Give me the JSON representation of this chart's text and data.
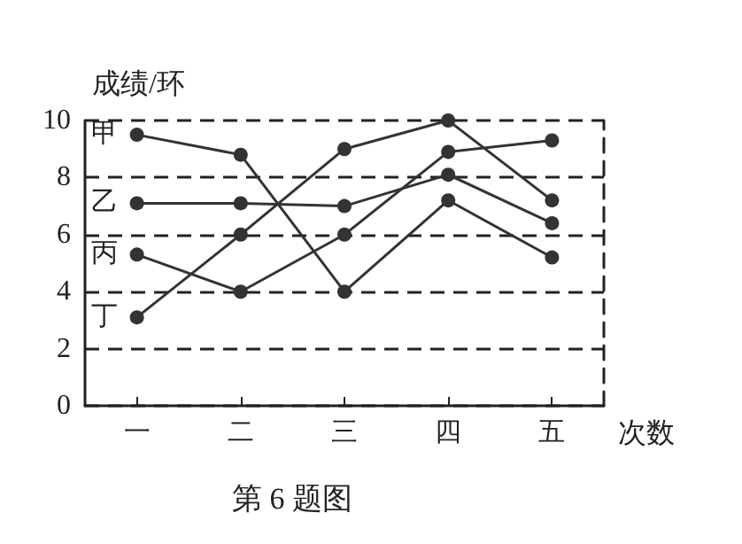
{
  "chart_data": {
    "type": "line",
    "title": "第 6 题图",
    "xlabel": "次数",
    "ylabel": "成绩/环",
    "categories": [
      "一",
      "二",
      "三",
      "四",
      "五"
    ],
    "series": [
      {
        "name": "甲",
        "color": "#333333",
        "values": [
          9.5,
          8.8,
          4,
          7.2,
          5.2
        ]
      },
      {
        "name": "乙",
        "color": "#333333",
        "values": [
          7.1,
          7.1,
          7.0,
          8.1,
          6.4
        ]
      },
      {
        "name": "丙",
        "color": "#333333",
        "values": [
          5.3,
          4,
          6,
          8.9,
          9.3
        ]
      },
      {
        "name": "丁",
        "color": "#333333",
        "values": [
          3.1,
          6,
          9,
          10,
          7.2
        ]
      }
    ],
    "ylim": [
      0,
      10
    ],
    "yticks": [
      0,
      2,
      4,
      6,
      8,
      10
    ],
    "grid": "y",
    "legend": false,
    "marker": "circle",
    "line_style": "solid"
  }
}
